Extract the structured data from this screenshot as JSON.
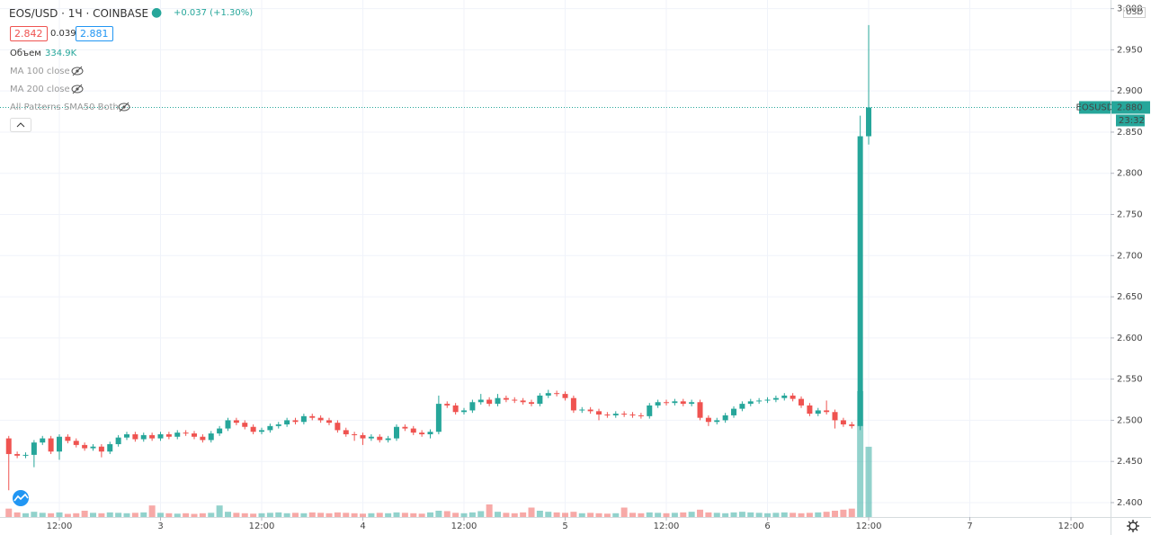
{
  "header": {
    "symbol": "EOS/USD · 1Ч · COINBASE",
    "change": "+0.037 (+1.30%)",
    "bid": "2.842",
    "spread": "0.039",
    "ask": "2.881",
    "volume_title": "Объем",
    "indicators": [
      "MA 100 close",
      "MA 200 close",
      "All Patterns SMA50 Both"
    ]
  },
  "chart_data": {
    "type": "candlestick",
    "x": [
      6,
      7,
      8,
      9,
      10,
      11,
      12,
      13,
      14,
      15,
      16,
      17,
      18,
      19,
      20,
      21,
      22,
      23,
      24,
      25,
      26,
      27,
      28,
      29,
      30,
      31,
      32,
      33,
      34,
      35,
      36,
      37,
      38,
      39,
      40,
      41,
      42,
      43,
      44,
      45,
      46,
      47,
      48,
      49,
      50,
      51,
      52,
      53,
      54,
      55,
      56,
      57,
      58,
      59,
      60,
      61,
      62,
      63,
      64,
      65,
      66,
      67,
      68,
      69,
      70,
      71,
      72,
      73,
      74,
      75,
      76,
      77,
      78,
      79,
      80,
      81,
      82,
      83,
      84,
      85,
      86,
      87,
      88,
      89,
      90,
      91,
      92,
      93,
      94,
      95,
      96,
      97,
      98,
      99,
      100,
      101,
      102,
      103,
      104,
      105,
      106,
      107,
      108
    ],
    "open": [
      2.478,
      2.459,
      2.457,
      2.458,
      2.473,
      2.478,
      2.462,
      2.48,
      2.475,
      2.47,
      2.466,
      2.468,
      2.462,
      2.471,
      2.479,
      2.483,
      2.477,
      2.482,
      2.478,
      2.483,
      2.48,
      2.485,
      2.484,
      2.48,
      2.476,
      2.484,
      2.49,
      2.5,
      2.497,
      2.492,
      2.486,
      2.488,
      2.493,
      2.495,
      2.5,
      2.498,
      2.505,
      2.503,
      2.5,
      2.497,
      2.488,
      2.483,
      2.482,
      2.478,
      2.48,
      2.476,
      2.478,
      2.492,
      2.49,
      2.485,
      2.483,
      2.486,
      2.52,
      2.518,
      2.51,
      2.512,
      2.522,
      2.525,
      2.52,
      2.527,
      2.525,
      2.524,
      2.522,
      2.52,
      2.53,
      2.533,
      2.532,
      2.527,
      2.512,
      2.513,
      2.511,
      2.507,
      2.506,
      2.508,
      2.507,
      2.506,
      2.505,
      2.518,
      2.522,
      2.521,
      2.523,
      2.52,
      2.522,
      2.503,
      2.498,
      2.5,
      2.506,
      2.514,
      2.52,
      2.523,
      2.524,
      2.525,
      2.527,
      2.53,
      2.526,
      2.518,
      2.508,
      2.512,
      2.51,
      2.5,
      2.495,
      2.493,
      2.845
    ],
    "high": [
      2.481,
      2.462,
      2.461,
      2.476,
      2.481,
      2.481,
      2.483,
      2.483,
      2.478,
      2.473,
      2.471,
      2.471,
      2.474,
      2.482,
      2.486,
      2.486,
      2.485,
      2.485,
      2.486,
      2.486,
      2.488,
      2.488,
      2.487,
      2.483,
      2.487,
      2.493,
      2.503,
      2.503,
      2.5,
      2.495,
      2.491,
      2.496,
      2.498,
      2.503,
      2.503,
      2.508,
      2.508,
      2.506,
      2.503,
      2.5,
      2.491,
      2.486,
      2.485,
      2.483,
      2.483,
      2.481,
      2.495,
      2.495,
      2.493,
      2.488,
      2.489,
      2.53,
      2.523,
      2.521,
      2.515,
      2.525,
      2.532,
      2.528,
      2.532,
      2.53,
      2.528,
      2.527,
      2.525,
      2.533,
      2.537,
      2.536,
      2.535,
      2.53,
      2.516,
      2.516,
      2.514,
      2.51,
      2.511,
      2.511,
      2.51,
      2.509,
      2.521,
      2.525,
      2.525,
      2.526,
      2.526,
      2.525,
      2.525,
      2.506,
      2.503,
      2.509,
      2.517,
      2.523,
      2.526,
      2.527,
      2.528,
      2.53,
      2.533,
      2.533,
      2.529,
      2.521,
      2.515,
      2.524,
      2.513,
      2.503,
      2.498,
      2.87,
      2.98
    ],
    "low": [
      2.415,
      2.454,
      2.454,
      2.443,
      2.47,
      2.459,
      2.452,
      2.472,
      2.467,
      2.463,
      2.463,
      2.455,
      2.459,
      2.468,
      2.476,
      2.474,
      2.474,
      2.475,
      2.475,
      2.477,
      2.477,
      2.481,
      2.477,
      2.473,
      2.473,
      2.481,
      2.487,
      2.494,
      2.489,
      2.483,
      2.483,
      2.485,
      2.49,
      2.492,
      2.495,
      2.495,
      2.5,
      2.497,
      2.494,
      2.485,
      2.48,
      2.475,
      2.47,
      2.475,
      2.473,
      2.473,
      2.475,
      2.487,
      2.482,
      2.48,
      2.478,
      2.483,
      2.515,
      2.507,
      2.507,
      2.509,
      2.519,
      2.517,
      2.517,
      2.522,
      2.521,
      2.519,
      2.517,
      2.517,
      2.527,
      2.529,
      2.524,
      2.509,
      2.509,
      2.508,
      2.5,
      2.503,
      2.503,
      2.504,
      2.503,
      2.502,
      2.502,
      2.515,
      2.518,
      2.518,
      2.517,
      2.517,
      2.5,
      2.493,
      2.495,
      2.497,
      2.503,
      2.511,
      2.517,
      2.52,
      2.521,
      2.522,
      2.524,
      2.523,
      2.515,
      2.505,
      2.505,
      2.507,
      2.49,
      2.492,
      2.49,
      2.488,
      2.835
    ],
    "close": [
      2.459,
      2.457,
      2.458,
      2.473,
      2.478,
      2.462,
      2.48,
      2.475,
      2.47,
      2.466,
      2.468,
      2.462,
      2.471,
      2.479,
      2.483,
      2.477,
      2.482,
      2.478,
      2.483,
      2.48,
      2.485,
      2.484,
      2.48,
      2.476,
      2.484,
      2.49,
      2.5,
      2.497,
      2.492,
      2.486,
      2.488,
      2.493,
      2.495,
      2.5,
      2.498,
      2.505,
      2.503,
      2.5,
      2.497,
      2.488,
      2.483,
      2.482,
      2.478,
      2.48,
      2.476,
      2.478,
      2.492,
      2.49,
      2.485,
      2.483,
      2.486,
      2.52,
      2.518,
      2.51,
      2.512,
      2.522,
      2.525,
      2.52,
      2.527,
      2.525,
      2.524,
      2.522,
      2.52,
      2.53,
      2.533,
      2.532,
      2.527,
      2.512,
      2.513,
      2.511,
      2.507,
      2.506,
      2.508,
      2.507,
      2.506,
      2.505,
      2.518,
      2.522,
      2.521,
      2.523,
      2.52,
      2.522,
      2.503,
      2.498,
      2.5,
      2.506,
      2.514,
      2.52,
      2.523,
      2.524,
      2.525,
      2.527,
      2.53,
      2.526,
      2.518,
      2.508,
      2.512,
      2.51,
      2.5,
      2.495,
      2.493,
      2.845,
      2.88
    ],
    "volume": [
      40,
      22,
      18,
      25,
      20,
      18,
      22,
      15,
      18,
      30,
      20,
      18,
      22,
      20,
      18,
      20,
      22,
      55,
      20,
      18,
      16,
      18,
      15,
      18,
      20,
      55,
      25,
      20,
      18,
      16,
      18,
      20,
      22,
      18,
      20,
      18,
      22,
      20,
      18,
      22,
      20,
      18,
      16,
      18,
      20,
      18,
      22,
      20,
      18,
      16,
      22,
      30,
      28,
      20,
      18,
      22,
      28,
      60,
      25,
      20,
      18,
      22,
      45,
      30,
      25,
      22,
      20,
      25,
      18,
      20,
      18,
      16,
      18,
      45,
      20,
      18,
      22,
      20,
      18,
      20,
      22,
      25,
      35,
      22,
      20,
      18,
      22,
      25,
      22,
      20,
      18,
      20,
      22,
      20,
      18,
      20,
      22,
      25,
      30,
      35,
      40,
      600,
      334.9
    ],
    "volume_label": "334.9K",
    "up_color": "#26a69a",
    "down_color": "#ef5350",
    "xlim": [
      4.96,
      136.69
    ],
    "xticks": [
      {
        "value": 12,
        "label": "12:00"
      },
      {
        "value": 24,
        "label": "3"
      },
      {
        "value": 36,
        "label": "12:00"
      },
      {
        "value": 48,
        "label": "4"
      },
      {
        "value": 60,
        "label": "12:00"
      },
      {
        "value": 72,
        "label": "5"
      },
      {
        "value": 84,
        "label": "12:00"
      },
      {
        "value": 96,
        "label": "6"
      },
      {
        "value": 108,
        "label": "12:00"
      },
      {
        "value": 120,
        "label": "7"
      },
      {
        "value": 132,
        "label": "12:00"
      }
    ],
    "ylim": [
      2.3825,
      3.0105
    ],
    "yticks": [
      {
        "value": 2.4,
        "label": "2.400"
      },
      {
        "value": 2.45,
        "label": "2.450"
      },
      {
        "value": 2.5,
        "label": "2.500"
      },
      {
        "value": 2.55,
        "label": "2.550"
      },
      {
        "value": 2.6,
        "label": "2.600"
      },
      {
        "value": 2.65,
        "label": "2.650"
      },
      {
        "value": 2.7,
        "label": "2.700"
      },
      {
        "value": 2.75,
        "label": "2.750"
      },
      {
        "value": 2.8,
        "label": "2.800"
      },
      {
        "value": 2.85,
        "label": "2.850"
      },
      {
        "value": 2.9,
        "label": "2.900"
      },
      {
        "value": 2.95,
        "label": "2.950"
      },
      {
        "value": 3,
        "label": "3.000"
      }
    ],
    "grid": true,
    "y_unit": "USD",
    "last_price": {
      "symbol": "EOSUSD",
      "label": "2.880",
      "countdown": "23:32"
    }
  }
}
